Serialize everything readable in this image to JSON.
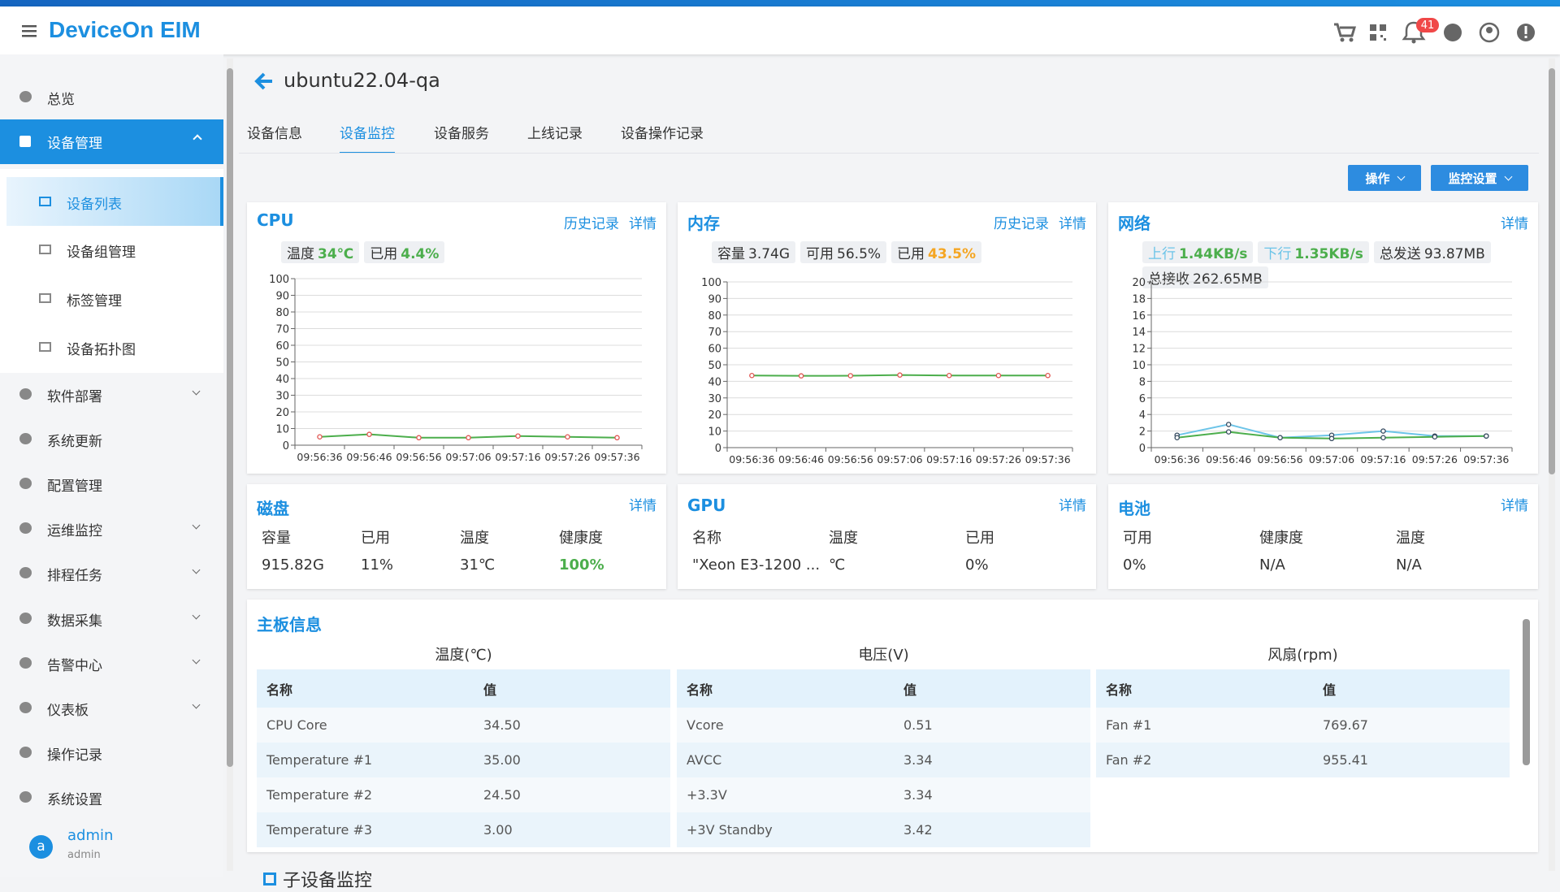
{
  "header": {
    "brand": "DeviceOn EIM",
    "notification_count": "41"
  },
  "sidebar": {
    "items": [
      {
        "label": "总览"
      },
      {
        "label": "设备管理",
        "submenu": [
          "设备列表",
          "设备组管理",
          "标签管理",
          "设备拓扑图"
        ],
        "active_child": 0
      },
      {
        "label": "软件部署",
        "has_children": true
      },
      {
        "label": "系统更新"
      },
      {
        "label": "配置管理"
      },
      {
        "label": "运维监控",
        "has_children": true
      },
      {
        "label": "排程任务",
        "has_children": true
      },
      {
        "label": "数据采集",
        "has_children": true
      },
      {
        "label": "告警中心",
        "has_children": true
      },
      {
        "label": "仪表板",
        "has_children": true
      },
      {
        "label": "操作记录"
      },
      {
        "label": "系统设置"
      }
    ],
    "user": {
      "initial": "a",
      "name": "admin",
      "role": "admin"
    }
  },
  "page": {
    "title": "ubuntu22.04-qa",
    "tabs": [
      "设备信息",
      "设备监控",
      "设备服务",
      "上线记录",
      "设备操作记录"
    ],
    "active_tab": 1,
    "actions": [
      "操作",
      "监控设置"
    ]
  },
  "cpu": {
    "title": "CPU",
    "links": [
      "历史记录",
      "详情"
    ],
    "stats": [
      {
        "label": "温度",
        "value": "34℃",
        "color": "#4cae4c"
      },
      {
        "label": "已用",
        "value": "4.4%",
        "color": "#4cae4c"
      }
    ],
    "chart": {
      "type": "line",
      "categories": [
        "09:56:36",
        "09:56:46",
        "09:56:56",
        "09:57:06",
        "09:57:16",
        "09:57:26",
        "09:57:36"
      ],
      "ylim": [
        0,
        100
      ],
      "yticks": [
        0,
        10,
        20,
        30,
        40,
        50,
        60,
        70,
        80,
        90,
        100
      ],
      "grid": true,
      "series": [
        {
          "color": "#4cae4c",
          "marker_color": "#e0534f",
          "values": [
            5,
            6.5,
            4.5,
            4.5,
            5.5,
            5,
            4.5
          ]
        }
      ]
    }
  },
  "memory": {
    "title": "内存",
    "links": [
      "历史记录",
      "详情"
    ],
    "stats": [
      {
        "label": "容量",
        "value": "3.74G"
      },
      {
        "label": "可用",
        "value": "56.5%"
      },
      {
        "label": "已用",
        "value": "43.5%",
        "color": "#f5a623"
      }
    ],
    "chart": {
      "type": "line",
      "categories": [
        "09:56:36",
        "09:56:46",
        "09:56:56",
        "09:57:06",
        "09:57:16",
        "09:57:26",
        "09:57:36"
      ],
      "ylim": [
        0,
        100
      ],
      "yticks": [
        0,
        10,
        20,
        30,
        40,
        50,
        60,
        70,
        80,
        90,
        100
      ],
      "grid": true,
      "series": [
        {
          "color": "#4cae4c",
          "marker_color": "#e0534f",
          "values": [
            43.5,
            43.3,
            43.4,
            43.8,
            43.5,
            43.5,
            43.5
          ]
        }
      ]
    }
  },
  "network": {
    "title": "网络",
    "links": [
      "详情"
    ],
    "stats": [
      {
        "label": "上行",
        "value": "1.44KB/s",
        "label_color": "#6cc4e8",
        "color": "#4cae4c"
      },
      {
        "label": "下行",
        "value": "1.35KB/s",
        "label_color": "#6cc4e8",
        "color": "#4cae4c"
      },
      {
        "label": "总发送",
        "value": "93.87MB"
      },
      {
        "label": "总接收",
        "value": "262.65MB"
      }
    ],
    "chart": {
      "type": "line",
      "categories": [
        "09:56:36",
        "09:56:46",
        "09:56:56",
        "09:57:06",
        "09:57:16",
        "09:57:26",
        "09:57:36"
      ],
      "ylim": [
        0,
        20
      ],
      "yticks": [
        0,
        2,
        4,
        6,
        8,
        10,
        12,
        14,
        16,
        18,
        20
      ],
      "grid": true,
      "series": [
        {
          "color": "#6cc4e8",
          "marker_color": "#34495e",
          "values": [
            1.5,
            2.8,
            1.2,
            1.5,
            2,
            1.4,
            1.4
          ]
        },
        {
          "color": "#4cae4c",
          "marker_color": "#34495e",
          "values": [
            1.2,
            1.9,
            1.2,
            1.1,
            1.2,
            1.3,
            1.4
          ]
        }
      ]
    }
  },
  "disk": {
    "title": "磁盘",
    "link": "详情",
    "columns": [
      "容量",
      "已用",
      "温度",
      "健康度"
    ],
    "values": [
      "915.82G",
      "11%",
      "31℃",
      "100%"
    ],
    "value_colors": [
      null,
      null,
      null,
      "#4cae4c"
    ]
  },
  "gpu": {
    "title": "GPU",
    "link": "详情",
    "columns": [
      "名称",
      "温度",
      "已用"
    ],
    "values": [
      "\"Xeon E3-1200 ...",
      "℃",
      "0%"
    ]
  },
  "battery": {
    "title": "电池",
    "link": "详情",
    "columns": [
      "可用",
      "健康度",
      "温度"
    ],
    "values": [
      "0%",
      "N/A",
      "N/A"
    ]
  },
  "board": {
    "title": "主板信息",
    "groups": [
      {
        "title": "温度(℃)",
        "columns": [
          "名称",
          "值"
        ],
        "rows": [
          [
            "CPU Core",
            "34.50"
          ],
          [
            "Temperature #1",
            "35.00"
          ],
          [
            "Temperature #2",
            "24.50"
          ],
          [
            "Temperature #3",
            "3.00"
          ]
        ]
      },
      {
        "title": "电压(V)",
        "columns": [
          "名称",
          "值"
        ],
        "rows": [
          [
            "Vcore",
            "0.51"
          ],
          [
            "AVCC",
            "3.34"
          ],
          [
            "+3.3V",
            "3.34"
          ],
          [
            "+3V Standby",
            "3.42"
          ]
        ]
      },
      {
        "title": "风扇(rpm)",
        "columns": [
          "名称",
          "值"
        ],
        "rows": [
          [
            "Fan #1",
            "769.67"
          ],
          [
            "Fan #2",
            "955.41"
          ]
        ]
      }
    ]
  },
  "next_section": {
    "title": "子设备监控"
  }
}
